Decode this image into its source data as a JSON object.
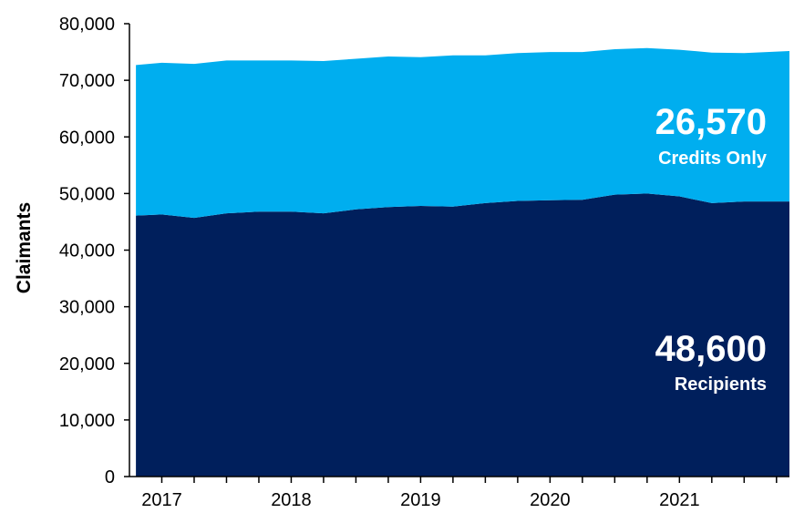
{
  "chart_data": {
    "type": "area",
    "stacked": true,
    "ylabel": "Claimants",
    "ylim": [
      0,
      80000
    ],
    "yticks": [
      "0",
      "10,000",
      "20,000",
      "30,000",
      "40,000",
      "50,000",
      "60,000",
      "70,000",
      "80,000"
    ],
    "ytick_values": [
      0,
      10000,
      20000,
      30000,
      40000,
      50000,
      60000,
      70000,
      80000
    ],
    "xlabels": [
      "2017",
      "2018",
      "2019",
      "2020",
      "2021"
    ],
    "xlabel_positions": [
      2017,
      2018,
      2019,
      2020,
      2021
    ],
    "xlim": [
      2016.75,
      2021.85
    ],
    "x": [
      2016.8,
      2017.0,
      2017.25,
      2017.5,
      2017.75,
      2018.0,
      2018.25,
      2018.5,
      2018.75,
      2019.0,
      2019.25,
      2019.5,
      2019.75,
      2020.0,
      2020.25,
      2020.5,
      2020.75,
      2021.0,
      2021.25,
      2021.5,
      2021.85
    ],
    "series": [
      {
        "name": "Recipients",
        "color": "#001f5c",
        "values": [
          46100,
          46300,
          45700,
          46500,
          46800,
          46800,
          46500,
          47200,
          47600,
          47800,
          47700,
          48300,
          48700,
          48800,
          48900,
          49800,
          50000,
          49500,
          48300,
          48600,
          48600
        ]
      },
      {
        "name": "Credits Only",
        "color": "#00aeef",
        "values": [
          26600,
          26800,
          27200,
          27000,
          26700,
          26700,
          26900,
          26600,
          26600,
          26300,
          26700,
          26100,
          26100,
          26200,
          26100,
          25700,
          25700,
          25900,
          26600,
          26200,
          26570
        ]
      }
    ],
    "annotations": [
      {
        "series": "Credits Only",
        "value_text": "26,570",
        "label": "Credits Only"
      },
      {
        "series": "Recipients",
        "value_text": "48,600",
        "label": "Recipients"
      }
    ],
    "grid": false,
    "legend": "none"
  }
}
